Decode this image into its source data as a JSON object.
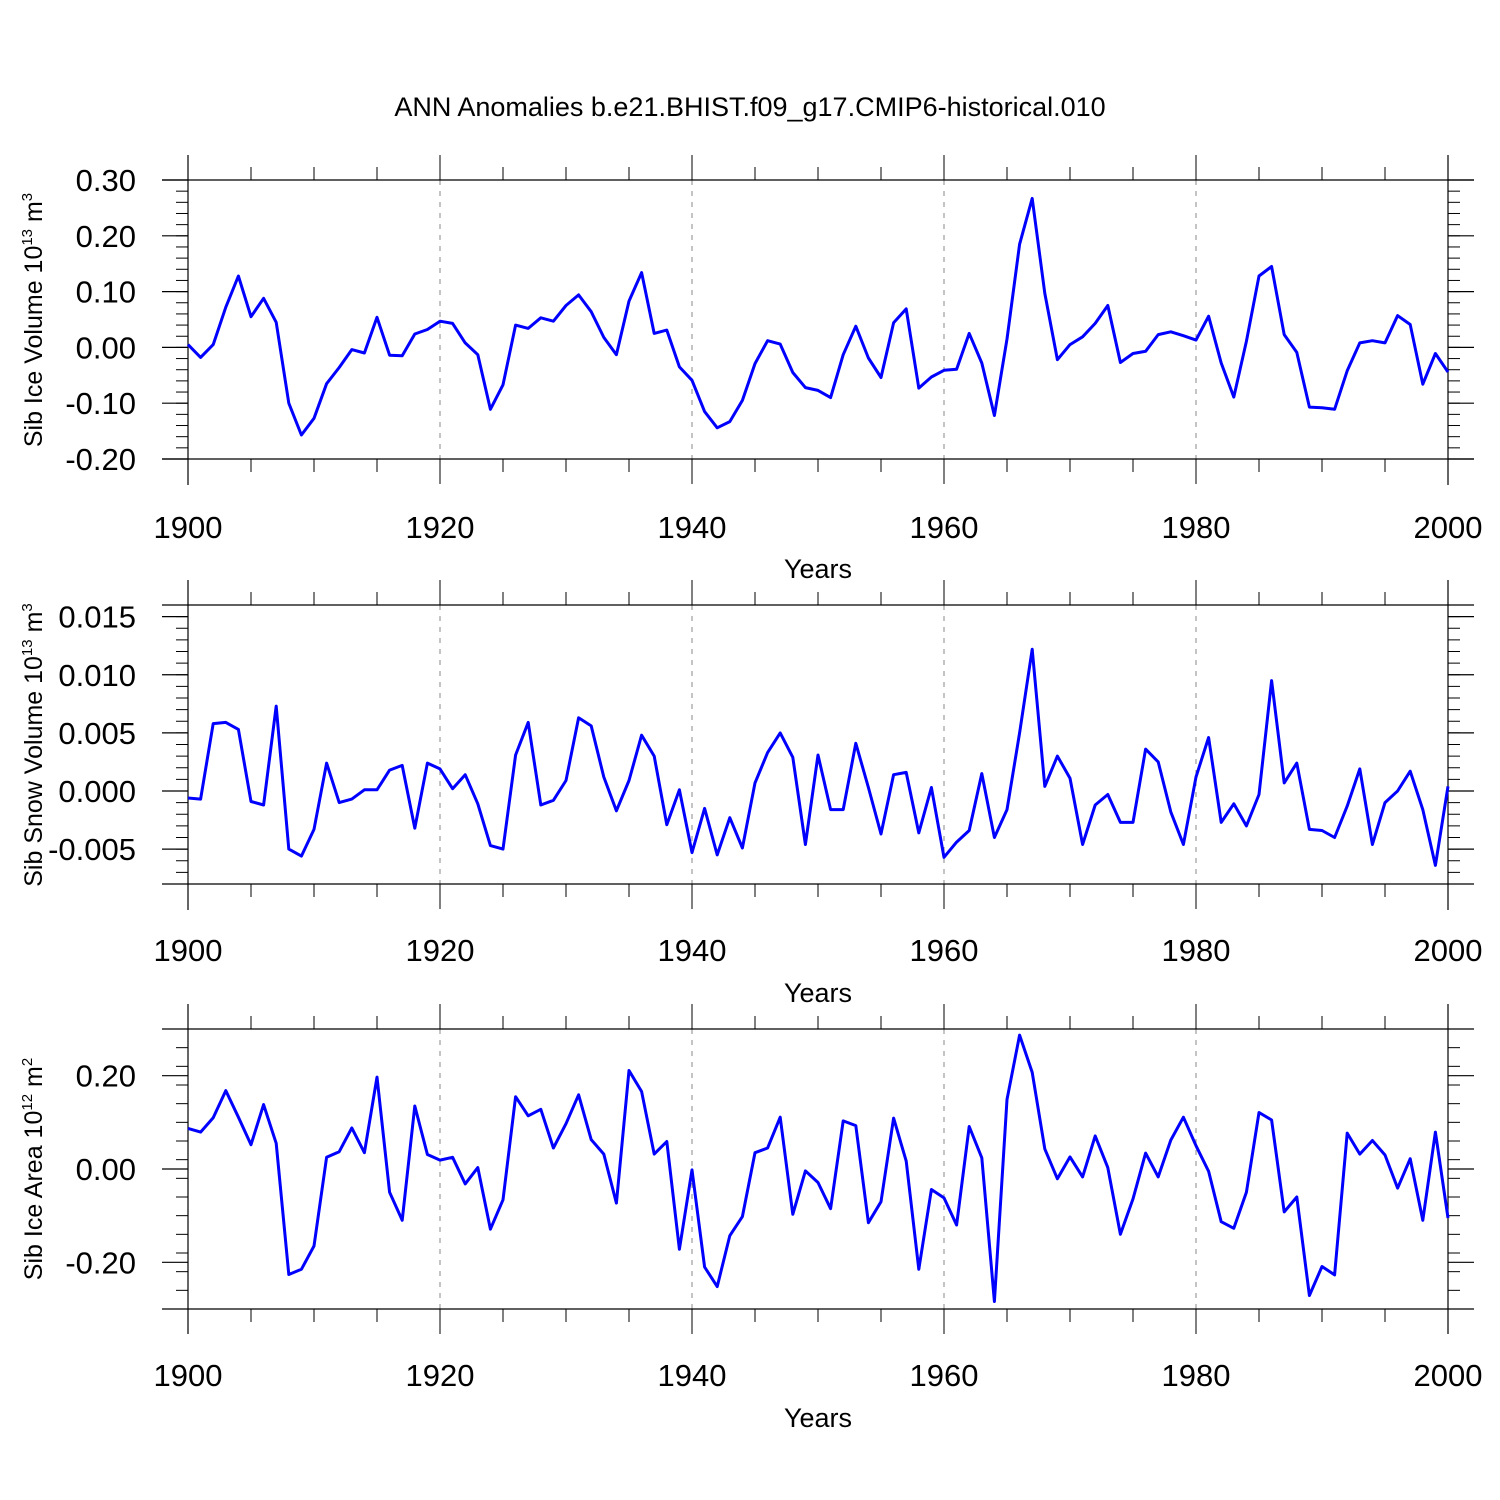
{
  "title": "ANN Anomalies b.e21.BHIST.f09_g17.CMIP6-historical.010",
  "line_color": "#0000ff",
  "chart_data": [
    {
      "type": "line",
      "title": "",
      "xlabel": "Years",
      "ylabel_main": "Sib Ice Volume 10",
      "ylabel_exp": "13",
      "ylabel_unit": " m",
      "ylabel_unit_exp": "3",
      "xlim": [
        1900,
        2000
      ],
      "ylim": [
        -0.2,
        0.3
      ],
      "xticks": [
        1900,
        1920,
        1940,
        1960,
        1980,
        2000
      ],
      "xtick_labels": [
        "1900",
        "1920",
        "1940",
        "1960",
        "1980",
        "2000"
      ],
      "yticks": [
        -0.2,
        -0.1,
        0.0,
        0.1,
        0.2,
        0.3
      ],
      "ytick_labels": [
        "-0.20",
        "-0.10",
        "0.00",
        "0.10",
        "0.20",
        "0.30"
      ],
      "series": [
        {
          "name": "Sib Ice Volume",
          "x_start": 1900,
          "values": [
            0.005,
            -0.018,
            0.005,
            0.072,
            0.128,
            0.055,
            0.088,
            0.045,
            -0.1,
            -0.157,
            -0.127,
            -0.065,
            -0.036,
            -0.004,
            -0.01,
            0.054,
            -0.014,
            -0.015,
            0.024,
            0.032,
            0.047,
            0.043,
            0.008,
            -0.013,
            -0.111,
            -0.067,
            0.04,
            0.034,
            0.053,
            0.047,
            0.075,
            0.094,
            0.064,
            0.018,
            -0.013,
            0.083,
            0.134,
            0.025,
            0.031,
            -0.035,
            -0.059,
            -0.115,
            -0.144,
            -0.133,
            -0.095,
            -0.029,
            0.012,
            0.006,
            -0.045,
            -0.072,
            -0.077,
            -0.09,
            -0.013,
            0.038,
            -0.019,
            -0.054,
            0.044,
            0.069,
            -0.073,
            -0.053,
            -0.041,
            -0.039,
            0.025,
            -0.028,
            -0.122,
            0.015,
            0.185,
            0.267,
            0.097,
            -0.022,
            0.005,
            0.019,
            0.043,
            0.075,
            -0.027,
            -0.011,
            -0.007,
            0.023,
            0.028,
            0.021,
            0.013,
            0.056,
            -0.028,
            -0.089,
            0.011,
            0.128,
            0.145,
            0.023,
            -0.009,
            -0.107,
            -0.108,
            -0.111,
            -0.042,
            0.008,
            0.012,
            0.008,
            0.057,
            0.041,
            -0.066,
            -0.011,
            -0.044
          ]
        }
      ]
    },
    {
      "type": "line",
      "title": "",
      "xlabel": "Years",
      "ylabel_main": "Sib Snow Volume 10",
      "ylabel_exp": "13",
      "ylabel_unit": " m",
      "ylabel_unit_exp": "3",
      "xlim": [
        1900,
        2000
      ],
      "ylim": [
        -0.008,
        0.016
      ],
      "xticks": [
        1900,
        1920,
        1940,
        1960,
        1980,
        2000
      ],
      "xtick_labels": [
        "1900",
        "1920",
        "1940",
        "1960",
        "1980",
        "2000"
      ],
      "yticks": [
        -0.005,
        0.0,
        0.005,
        0.01,
        0.015
      ],
      "ytick_labels": [
        "-0.005",
        "0.000",
        "0.005",
        "0.010",
        "0.015"
      ],
      "series": [
        {
          "name": "Sib Snow Volume",
          "x_start": 1900,
          "values": [
            -0.0006,
            -0.0007,
            0.0058,
            0.0059,
            0.0053,
            -0.0009,
            -0.0012,
            0.0073,
            -0.005,
            -0.0056,
            -0.0033,
            0.0024,
            -0.001,
            -0.0007,
            0.0001,
            0.0001,
            0.0018,
            0.0022,
            -0.0032,
            0.0024,
            0.0019,
            0.0002,
            0.0014,
            -0.0011,
            -0.0047,
            -0.005,
            0.0031,
            0.0059,
            -0.0012,
            -0.0008,
            0.0009,
            0.0063,
            0.0056,
            0.0012,
            -0.0017,
            0.0009,
            0.0048,
            0.003,
            -0.0029,
            0.0001,
            -0.0053,
            -0.0015,
            -0.0055,
            -0.0023,
            -0.0049,
            0.0007,
            0.0033,
            0.005,
            0.0029,
            -0.0046,
            0.0031,
            -0.0016,
            -0.0016,
            0.0041,
            0.0003,
            -0.0037,
            0.0014,
            0.0016,
            -0.0036,
            0.0003,
            -0.0057,
            -0.0044,
            -0.0034,
            0.0015,
            -0.004,
            -0.0016,
            0.005,
            0.0122,
            0.0004,
            0.003,
            0.0011,
            -0.0046,
            -0.0012,
            -0.0003,
            -0.0027,
            -0.0027,
            0.0036,
            0.0025,
            -0.0018,
            -0.0046,
            0.0012,
            0.0046,
            -0.0027,
            -0.0011,
            -0.003,
            -0.0003,
            0.0095,
            0.0007,
            0.0024,
            -0.0033,
            -0.0034,
            -0.004,
            -0.0013,
            0.0019,
            -0.0046,
            -0.001,
            0.0,
            0.0017,
            -0.0016,
            -0.0064,
            0.0004
          ]
        }
      ]
    },
    {
      "type": "line",
      "title": "",
      "xlabel": "Years",
      "ylabel_main": "Sib Ice Area 10",
      "ylabel_exp": "12",
      "ylabel_unit": " m",
      "ylabel_unit_exp": "2",
      "xlim": [
        1900,
        2000
      ],
      "ylim": [
        -0.3,
        0.3
      ],
      "xticks": [
        1900,
        1920,
        1940,
        1960,
        1980,
        2000
      ],
      "xtick_labels": [
        "1900",
        "1920",
        "1940",
        "1960",
        "1980",
        "2000"
      ],
      "yticks": [
        -0.2,
        0.0,
        0.2
      ],
      "ytick_labels": [
        "-0.20",
        "0.00",
        "0.20"
      ],
      "series": [
        {
          "name": "Sib Ice Area",
          "x_start": 1900,
          "values": [
            0.087,
            0.079,
            0.11,
            0.168,
            0.111,
            0.052,
            0.138,
            0.055,
            -0.226,
            -0.215,
            -0.165,
            0.025,
            0.037,
            0.088,
            0.035,
            0.197,
            -0.05,
            -0.11,
            0.135,
            0.031,
            0.019,
            0.025,
            -0.032,
            0.003,
            -0.129,
            -0.066,
            0.155,
            0.114,
            0.128,
            0.045,
            0.097,
            0.159,
            0.063,
            0.032,
            -0.073,
            0.211,
            0.166,
            0.032,
            0.059,
            -0.172,
            -0.002,
            -0.21,
            -0.252,
            -0.143,
            -0.102,
            0.035,
            0.045,
            0.111,
            -0.097,
            -0.004,
            -0.029,
            -0.085,
            0.103,
            0.093,
            -0.115,
            -0.07,
            0.109,
            0.017,
            -0.215,
            -0.044,
            -0.062,
            -0.12,
            0.091,
            0.024,
            -0.284,
            0.149,
            0.287,
            0.207,
            0.043,
            -0.021,
            0.026,
            -0.017,
            0.071,
            0.003,
            -0.14,
            -0.064,
            0.034,
            -0.017,
            0.062,
            0.111,
            0.05,
            -0.005,
            -0.113,
            -0.127,
            -0.05,
            0.121,
            0.105,
            -0.092,
            -0.06,
            -0.271,
            -0.209,
            -0.227,
            0.077,
            0.032,
            0.061,
            0.03,
            -0.041,
            0.022,
            -0.11,
            0.079,
            -0.105
          ]
        }
      ]
    }
  ]
}
